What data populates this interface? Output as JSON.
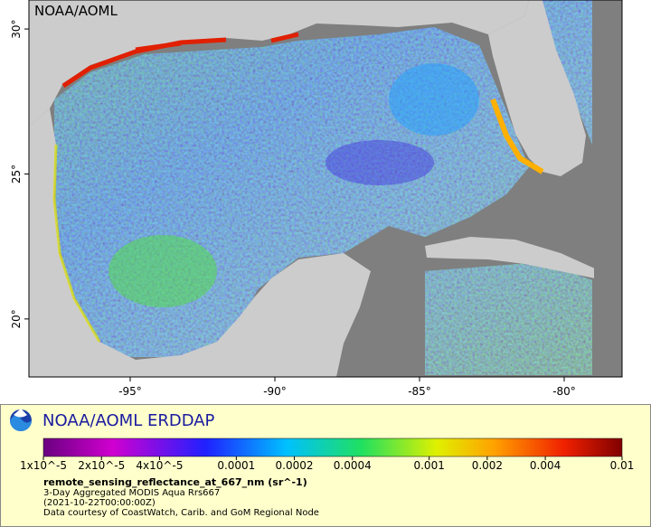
{
  "map": {
    "corner_label": "NOAA/AOML",
    "xlim": [
      -98.5,
      -78
    ],
    "ylim": [
      18,
      31
    ],
    "lon_ticks": [
      {
        "value": -95,
        "label": "-95°"
      },
      {
        "value": -90,
        "label": "-90°"
      },
      {
        "value": -85,
        "label": "-85°"
      },
      {
        "value": -80,
        "label": "-80°"
      }
    ],
    "lat_ticks": [
      {
        "value": 30,
        "label": "30°"
      },
      {
        "value": 25,
        "label": "25°"
      },
      {
        "value": 20,
        "label": "20°"
      }
    ]
  },
  "legend": {
    "title": "NOAA/AOML ERDDAP",
    "colorbar_range": [
      1e-05,
      0.01
    ],
    "colorbar_ticks": [
      {
        "value": 1e-05,
        "label": "1x10^-5"
      },
      {
        "value": 2e-05,
        "label": "2x10^-5"
      },
      {
        "value": 4e-05,
        "label": "4x10^-5"
      },
      0.0001,
      0.0002,
      0.0004,
      0.001,
      0.002,
      0.004,
      0.01
    ],
    "variable": "remote_sensing_reflectance_at_667_nm (sr^-1)",
    "dataset": "3-Day Aggregated MODIS Aqua Rrs667",
    "time": "(2021-10-22T00:00:00Z)",
    "credit": "Data courtesy of CoastWatch, Carib. and GoM Regional Node"
  }
}
